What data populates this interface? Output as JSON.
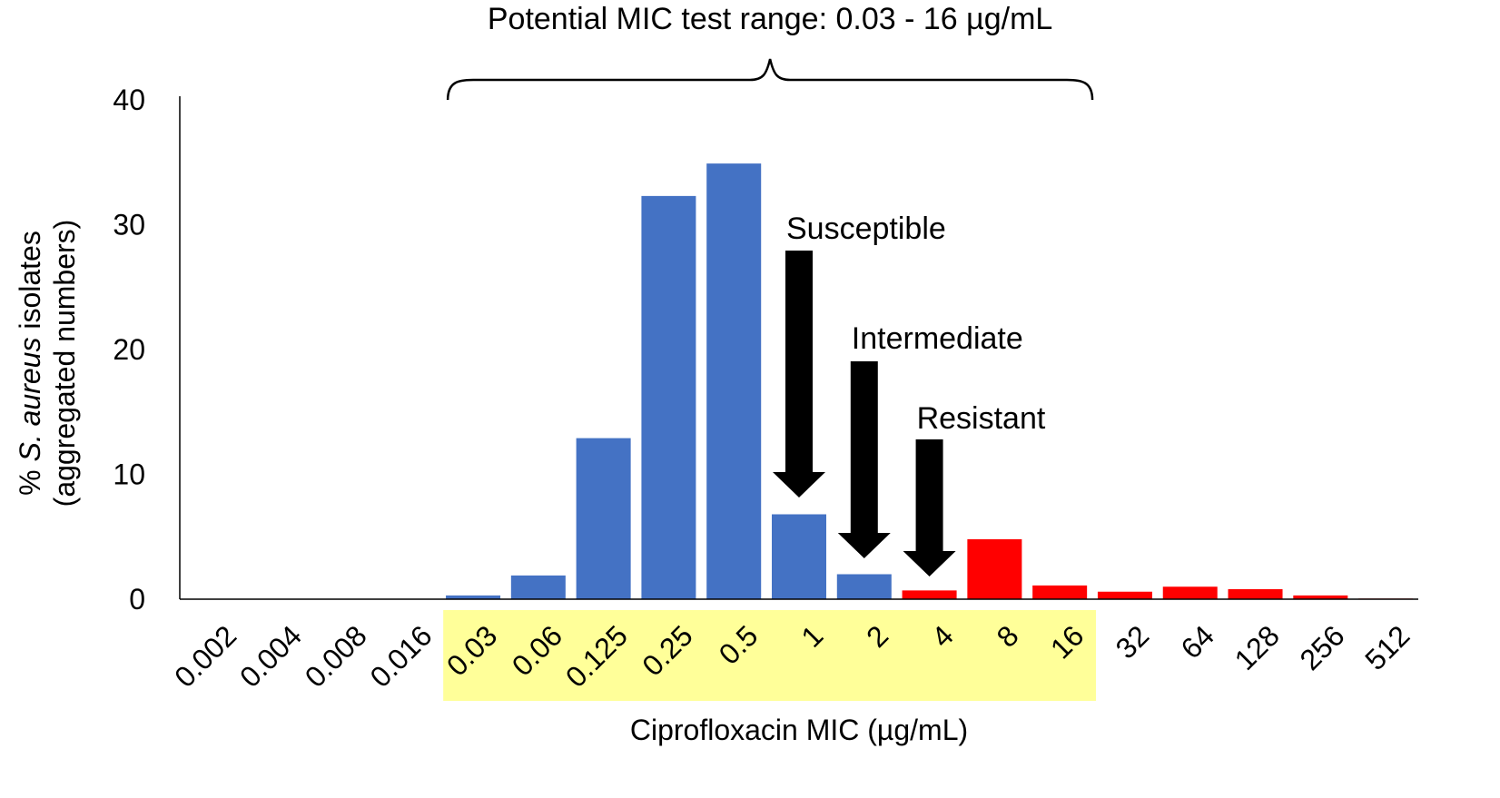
{
  "chart_data": {
    "type": "bar",
    "title": "Potential MIC test range: 0.03 - 16 µg/mL",
    "xlabel": "Ciprofloxacin MIC (µg/mL)",
    "ylabel_prefix": "% ",
    "ylabel_species": "S. aureus",
    "ylabel_suffix": " isolates",
    "ylabel_line2": "(aggregated numbers)",
    "ylim": [
      0,
      40
    ],
    "yticks": [
      "0",
      "10",
      "20",
      "30",
      "40"
    ],
    "ytick_values": [
      0,
      10,
      20,
      30,
      40
    ],
    "categories": [
      "0.002",
      "0.004",
      "0.008",
      "0.016",
      "0.03",
      "0.06",
      "0.125",
      "0.25",
      "0.5",
      "1",
      "2",
      "4",
      "8",
      "16",
      "32",
      "64",
      "128",
      "256",
      "512"
    ],
    "values": [
      0,
      0,
      0,
      0,
      0.3,
      1.9,
      12.9,
      32.3,
      34.9,
      6.8,
      2.0,
      0.7,
      4.8,
      1.1,
      0.6,
      1.0,
      0.8,
      0.3,
      0.05
    ],
    "bar_category": [
      "susceptible",
      "susceptible",
      "susceptible",
      "susceptible",
      "susceptible",
      "susceptible",
      "susceptible",
      "susceptible",
      "susceptible",
      "susceptible",
      "susceptible",
      "resistant",
      "resistant",
      "resistant",
      "resistant",
      "resistant",
      "resistant",
      "resistant",
      "resistant"
    ],
    "test_range": {
      "start": "0.03",
      "end": "16"
    },
    "annotations": [
      {
        "label": "Susceptible",
        "category": "1"
      },
      {
        "label": "Intermediate",
        "category": "2"
      },
      {
        "label": "Resistant",
        "category": "4"
      }
    ],
    "colors": {
      "blue": "#4472C4",
      "red": "#FF0000",
      "highlight": "#FFFF99",
      "arrow": "#000000",
      "axis": "#000000"
    }
  }
}
